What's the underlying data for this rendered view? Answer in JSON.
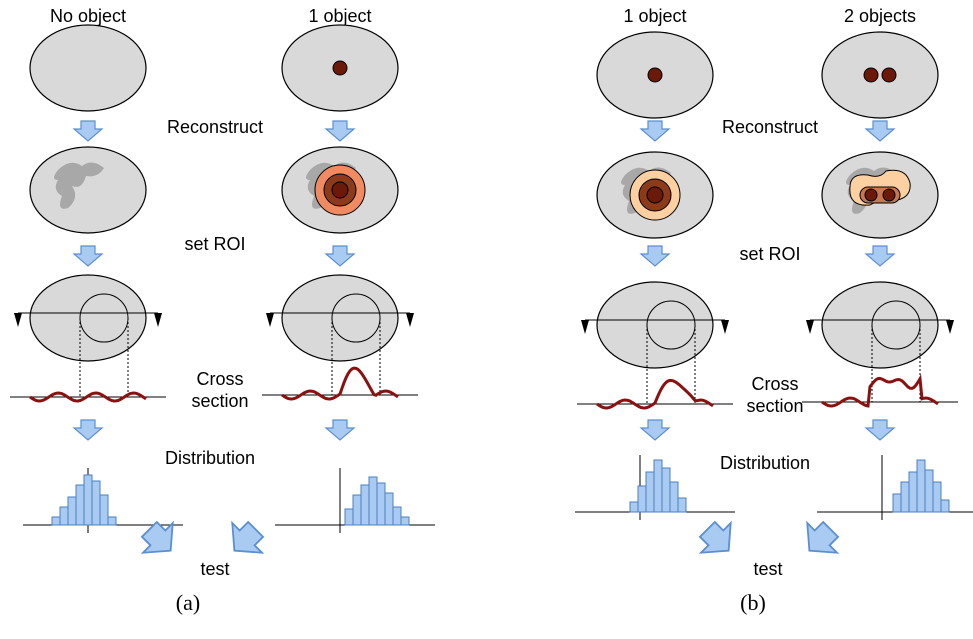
{
  "panels": [
    {
      "columns": [
        "No object",
        "1 object"
      ],
      "reconstruct": "Reconstruct",
      "roi": "set ROI",
      "cross_section": [
        "Cross",
        "section"
      ],
      "distribution": "Distribution",
      "test": "test",
      "label": "(a)"
    },
    {
      "columns": [
        "1 object",
        "2 objects"
      ],
      "reconstruct": "Reconstruct",
      "roi": "set ROI",
      "cross_section": [
        "Cross",
        "section"
      ],
      "distribution": "Distribution",
      "test": "test",
      "label": "(b)"
    }
  ]
}
